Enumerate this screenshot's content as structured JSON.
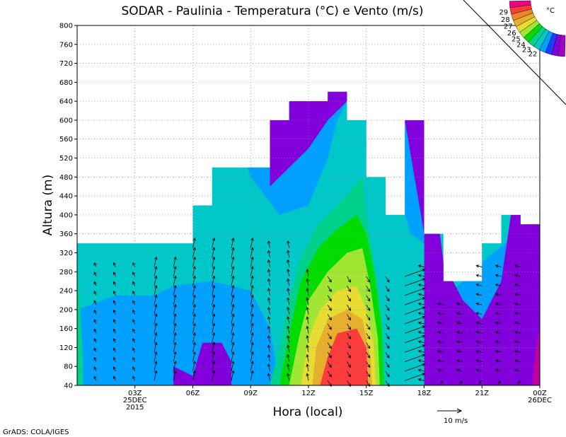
{
  "chart_data": {
    "type": "heatmap",
    "title": "SODAR - Paulinia - Temperatura (°C) e Vento (m/s)",
    "xlabel": "Hora (local)",
    "ylabel": "Altura (m)",
    "ylim": [
      40,
      800
    ],
    "xlim": [
      0,
      24
    ],
    "y_ticks": [
      40,
      80,
      120,
      160,
      200,
      240,
      280,
      320,
      360,
      400,
      440,
      480,
      520,
      560,
      600,
      640,
      680,
      720,
      760,
      800
    ],
    "x_ticks": [
      {
        "h": 3,
        "lines": [
          "03Z",
          "25DEC",
          "2015"
        ]
      },
      {
        "h": 6,
        "lines": [
          "06Z"
        ]
      },
      {
        "h": 9,
        "lines": [
          "09Z"
        ]
      },
      {
        "h": 12,
        "lines": [
          "12Z"
        ]
      },
      {
        "h": 15,
        "lines": [
          "15Z"
        ]
      },
      {
        "h": 18,
        "lines": [
          "18Z"
        ]
      },
      {
        "h": 21,
        "lines": [
          "21Z"
        ]
      },
      {
        "h": 24,
        "lines": [
          "00Z",
          "26DEC"
        ]
      }
    ],
    "grid": true,
    "colorbar": {
      "unit": "°C",
      "levels": [
        22,
        23,
        24,
        25,
        26,
        27,
        28,
        29
      ],
      "colors": [
        "#a000c8",
        "#8200dc",
        "#1e3cff",
        "#00a0ff",
        "#00c8c8",
        "#00d28c",
        "#00dc00",
        "#a0e632",
        "#e6dc32",
        "#e6af2d",
        "#f08228",
        "#fa3c3c",
        "#f00082"
      ]
    },
    "temperature_bins_degC": [
      "<22",
      "22-23",
      "23-24",
      "24-25",
      "25-26",
      "26-27",
      "27-28",
      ">28"
    ],
    "hours": [
      0,
      1,
      2,
      3,
      4,
      5,
      6,
      7,
      8,
      9,
      10,
      11,
      12,
      13,
      14,
      15,
      16,
      17,
      18,
      19,
      20,
      21,
      22,
      23,
      24
    ],
    "top_height_m": [
      340,
      340,
      340,
      340,
      340,
      340,
      420,
      500,
      500,
      500,
      600,
      640,
      640,
      660,
      600,
      480,
      400,
      600,
      360,
      260,
      260,
      340,
      400,
      380,
      380
    ],
    "regions": [
      {
        "temp_range": "<22",
        "color": "#a000c8"
      },
      {
        "temp_range": "22-23",
        "color": "#8200dc"
      },
      {
        "temp_range": "23-24",
        "color": "#1e3cff"
      },
      {
        "temp_range": "24-25",
        "color": "#00a0ff"
      },
      {
        "temp_range": "25-26",
        "color": "#00c8c8"
      },
      {
        "temp_range": "26-27",
        "color": "#00d28c"
      },
      {
        "temp_range": "27-28",
        "color": "#00dc00"
      },
      {
        "temp_range": ">28",
        "color": "#fa3c3c"
      }
    ],
    "wind_scale": {
      "speed": 10,
      "unit": "m/s",
      "label": "10 m/s"
    },
    "wind_vectors_note": "Vectors at hourly intervals 40-320 m (shown as arrows)",
    "footer": "GrADS: COLA/IGES"
  }
}
